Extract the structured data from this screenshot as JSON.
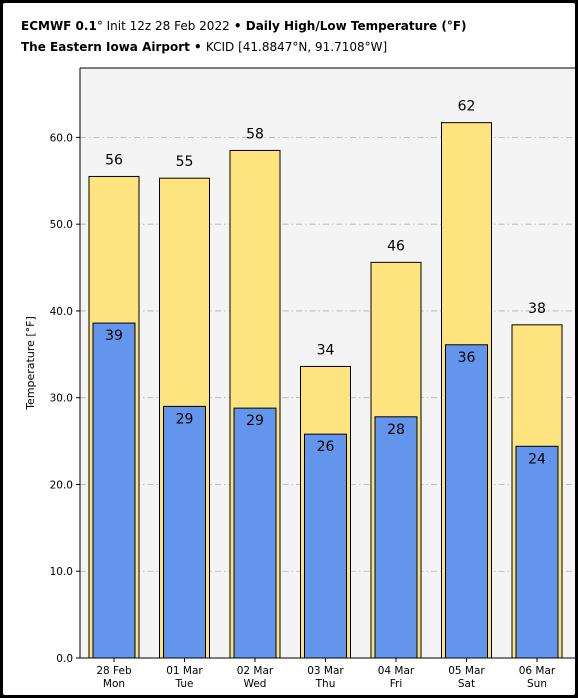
{
  "header": {
    "line1": {
      "model": "ECMWF 0.1",
      "deg": "°",
      "init": " Init 12z 28 Feb 2022",
      "bullet": " • ",
      "title": "Daily High/Low Temperature (°F)"
    },
    "line2": {
      "location": "The Eastern Iowa Airport",
      "bullet": " • ",
      "station": "KCID [41.8847°N, 91.7108°W]"
    }
  },
  "chart_data": {
    "type": "bar",
    "categories": [
      "28 Feb\nMon",
      "01 Mar\nTue",
      "02 Mar\nWed",
      "03 Mar\nThu",
      "04 Mar\nFri",
      "05 Mar\nSat",
      "06 Mar\nSun"
    ],
    "series": [
      {
        "values": [
          55.5,
          55.3,
          58.5,
          33.6,
          45.6,
          61.7,
          38.4
        ],
        "labels": [
          "56",
          "55",
          "58",
          "34",
          "46",
          "62",
          "38"
        ],
        "color": "#fde47f"
      },
      {
        "values": [
          38.6,
          29.0,
          28.8,
          25.8,
          27.8,
          36.1,
          24.4
        ],
        "labels": [
          "39",
          "29",
          "29",
          "26",
          "28",
          "36",
          "24"
        ],
        "color": "#6495ed"
      }
    ],
    "ylabel": "Temperature [°F]",
    "ylim": [
      0,
      68
    ],
    "yticks": [
      "0.0",
      "10.0",
      "20.0",
      "30.0",
      "40.0",
      "50.0",
      "60.0"
    ],
    "grid": true,
    "colors": {
      "plot_bg": "#f4f4f4",
      "grid": "#b0b0b0"
    }
  }
}
